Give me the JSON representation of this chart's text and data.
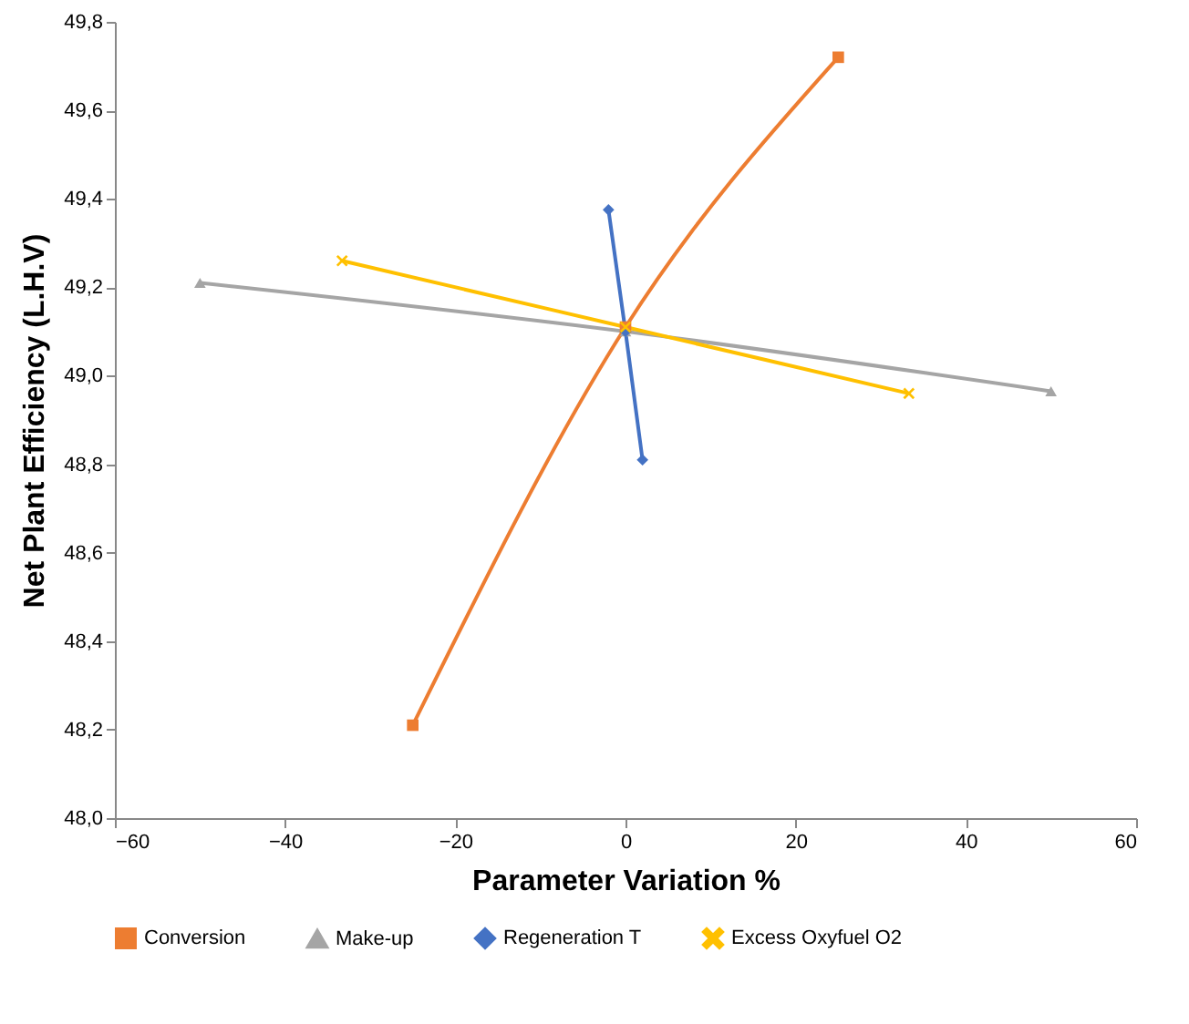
{
  "chart_data": {
    "type": "line",
    "xlabel": "Parameter Variation %",
    "ylabel": "Net Plant Efficiency (L.H.V)",
    "xlim": [
      -60,
      60
    ],
    "xticks": [
      -60,
      -40,
      -20,
      0,
      20,
      40,
      60
    ],
    "ylim": [
      48.0,
      49.8
    ],
    "yticks": [
      {
        "value": 48.0,
        "label": "48,0"
      },
      {
        "value": 48.2,
        "label": "48,2"
      },
      {
        "value": 48.4,
        "label": "48,4"
      },
      {
        "value": 48.6,
        "label": "48,6"
      },
      {
        "value": 48.8,
        "label": "48,8"
      },
      {
        "value": 49.0,
        "label": "49,0"
      },
      {
        "value": 49.2,
        "label": "49,2"
      },
      {
        "value": 49.4,
        "label": "49,4"
      },
      {
        "value": 49.6,
        "label": "49,6"
      },
      {
        "value": 49.8,
        "label": "49,8"
      }
    ],
    "grid": false,
    "legend": "bottom",
    "line_style": "solid",
    "series": [
      {
        "name": "Conversion",
        "color": "#ed7d31",
        "marker": "square",
        "x": [
          -25,
          0,
          25
        ],
        "values": [
          48.21,
          49.11,
          49.72
        ]
      },
      {
        "name": "Make-up",
        "color": "#a5a5a5",
        "marker": "triangle",
        "x": [
          -50,
          0,
          50
        ],
        "values": [
          49.21,
          49.1,
          48.965
        ]
      },
      {
        "name": "Regeneration T",
        "color": "#4472c4",
        "marker": "diamond",
        "x": [
          -2,
          0,
          2
        ],
        "values": [
          49.375,
          49.1,
          48.81
        ]
      },
      {
        "name": "Excess Oxyfuel O2",
        "color": "#ffc000",
        "marker": "cross",
        "x": [
          -33.3,
          0,
          33.3
        ],
        "values": [
          49.26,
          49.11,
          48.96
        ]
      }
    ]
  }
}
